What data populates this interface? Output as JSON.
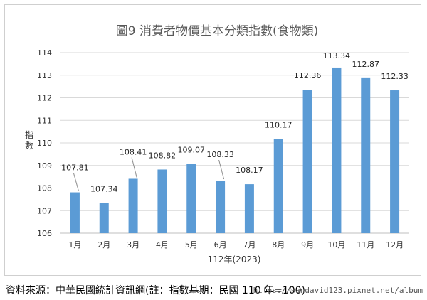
{
  "chart_data": {
    "type": "bar",
    "title": "圖9  消費者物價基本分類指數(食物類)",
    "xlabel": "112年(2023)",
    "ylabel": "指數",
    "categories": [
      "1月",
      "2月",
      "3月",
      "4月",
      "5月",
      "6月",
      "7月",
      "8月",
      "9月",
      "10月",
      "11月",
      "12月"
    ],
    "values": [
      107.81,
      107.34,
      108.41,
      108.82,
      109.07,
      108.33,
      108.17,
      110.17,
      112.36,
      113.34,
      112.87,
      112.33
    ],
    "value_labels": [
      "107.81",
      "107.34",
      "108.41",
      "108.82",
      "109.07",
      "108.33",
      "108.17",
      "110.17",
      "112.36",
      "113.34",
      "112.87",
      "112.33"
    ],
    "ylim": [
      106,
      114
    ],
    "yticks": [
      "106",
      "107",
      "108",
      "109",
      "110",
      "111",
      "112",
      "113",
      "114"
    ],
    "grid": true,
    "legend": "none",
    "bar_color": "#5b9bd5"
  },
  "footer": {
    "source": "資料來源：中華民國統計資訊網(註：指數基期：民國 110 年=100)",
    "watermark": "https://sandavid123.pixnet.net/album"
  }
}
